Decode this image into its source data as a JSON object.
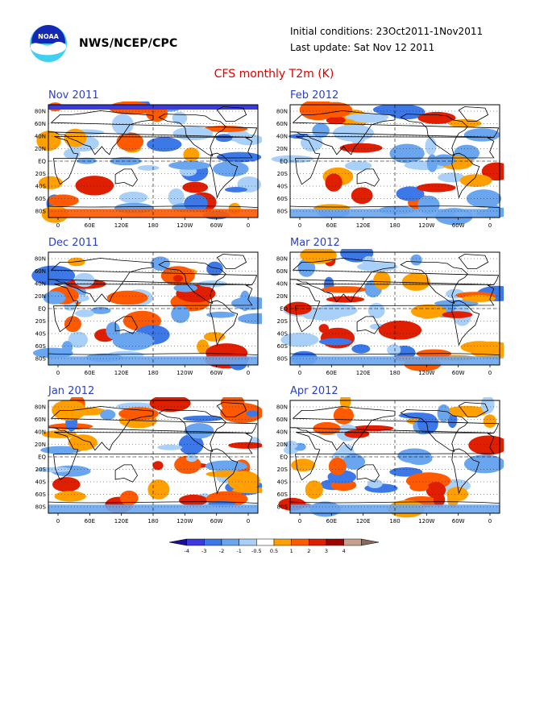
{
  "header": {
    "agency": "NWS/NCEP/CPC",
    "logo_text": "NOAA",
    "initial_conditions": "Initial conditions: 23Oct2011-1Nov2011",
    "last_update": "Last update: Sat Nov 12 2011"
  },
  "title": "CFS monthly T2m (K)",
  "colors": {
    "title": "#e00000",
    "panel_title": "#2a40c8"
  },
  "chart_data": {
    "type": "heatmap",
    "title": "CFS monthly T2m (K)",
    "x_ticks": [
      "0",
      "60E",
      "120E",
      "180",
      "120W",
      "60W",
      "0"
    ],
    "y_ticks": [
      "80N",
      "60N",
      "40N",
      "20N",
      "EQ",
      "20S",
      "40S",
      "60S",
      "80S"
    ],
    "panels": [
      "Nov 2011",
      "Dec 2011",
      "Jan 2012",
      "Feb 2012",
      "Mar 2012",
      "Apr 2012"
    ],
    "colorbar": {
      "labels": [
        "-4",
        "-3",
        "-2",
        "-1",
        "-0.5",
        "0.5",
        "1",
        "2",
        "3",
        "4"
      ],
      "colors": [
        "#1a0f96",
        "#3a3ae0",
        "#3c78e8",
        "#6aa6f0",
        "#a8d0f8",
        "#ffffff",
        "#ffa000",
        "#ff5a00",
        "#e01e00",
        "#a00000",
        "#c8a090",
        "#8a6a5a"
      ]
    }
  }
}
